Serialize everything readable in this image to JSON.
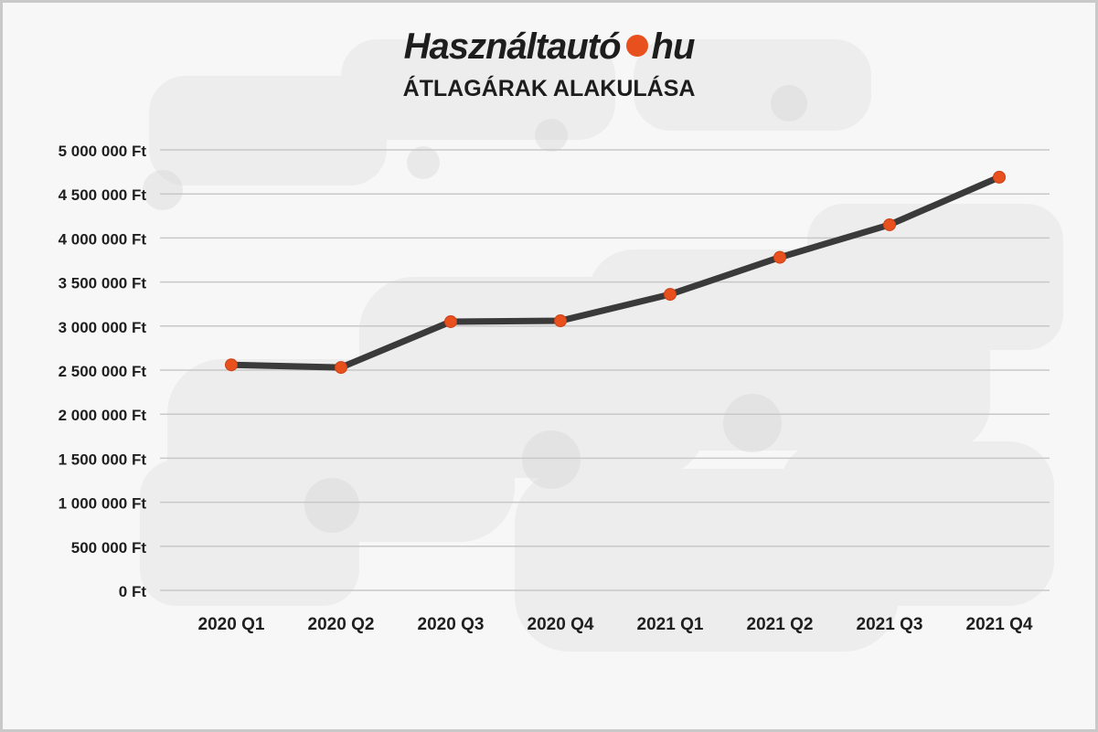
{
  "brand": {
    "name_part1": "Használtautó",
    "name_part2": "hu",
    "accent_color": "#e8501e"
  },
  "chart_data": {
    "type": "line",
    "title": "ÁTLAGÁRAK ALAKULÁSA",
    "xlabel": "",
    "ylabel": "",
    "categories": [
      "2020 Q1",
      "2020 Q2",
      "2020 Q3",
      "2020 Q4",
      "2021 Q1",
      "2021 Q2",
      "2021 Q3",
      "2021 Q4"
    ],
    "series": [
      {
        "values": [
          2560000,
          2530000,
          3050000,
          3060000,
          3360000,
          3780000,
          4150000,
          4690000
        ]
      }
    ],
    "ylim": [
      0,
      5000000
    ],
    "yticks": [
      "0 Ft",
      "500 000 Ft",
      "1 000 000 Ft",
      "1 500 000 Ft",
      "2 000 000 Ft",
      "2 500 000 Ft",
      "3 000 000 Ft",
      "3 500 000 Ft",
      "4 000 000 Ft",
      "4 500 000 Ft",
      "5 000 000 Ft"
    ],
    "grid": true,
    "legend": "none",
    "line_color": "#3a3a3a",
    "marker_color": "#e8501e"
  }
}
